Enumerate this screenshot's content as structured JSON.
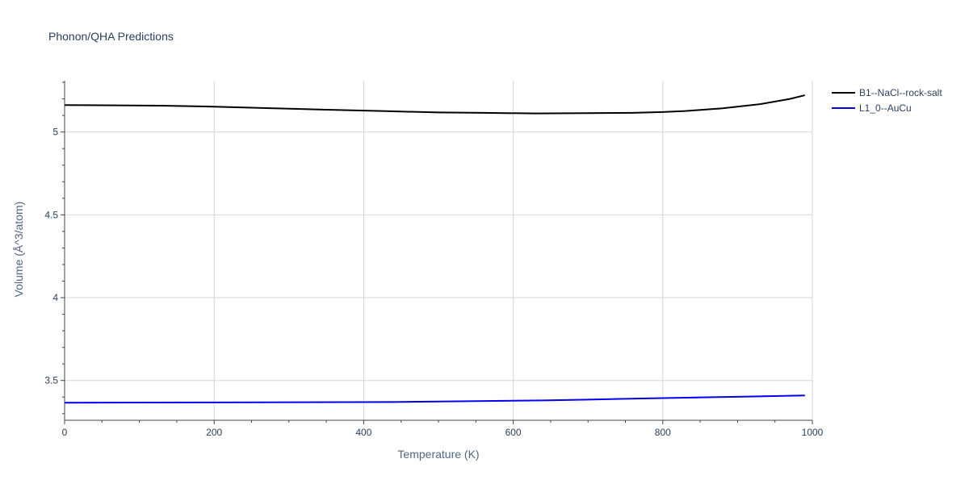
{
  "chart_data": {
    "type": "line",
    "title": "Phonon/QHA Predictions",
    "xlabel": "Temperature (K)",
    "ylabel": "Volume (Å^3/atom)",
    "xlim": [
      0,
      1000
    ],
    "ylim": [
      3.26,
      5.31
    ],
    "xticks": [
      0,
      200,
      400,
      600,
      800,
      1000
    ],
    "yticks": [
      3.5,
      4,
      4.5,
      5
    ],
    "xtick_labels": [
      "0",
      "200",
      "400",
      "600",
      "800",
      "1000"
    ],
    "ytick_labels": [
      "3.5",
      "4",
      "4.5",
      "5"
    ],
    "grid": true,
    "legend_position": "top-right",
    "series": [
      {
        "name": "B1--NaCl--rock-salt",
        "color": "#000000",
        "x": [
          0,
          130,
          200,
          280,
          350,
          430,
          500,
          560,
          630,
          700,
          760,
          800,
          830,
          880,
          930,
          970,
          990
        ],
        "y": [
          5.163,
          5.159,
          5.153,
          5.143,
          5.135,
          5.126,
          5.118,
          5.116,
          5.112,
          5.114,
          5.116,
          5.121,
          5.127,
          5.143,
          5.168,
          5.2,
          5.222
        ]
      },
      {
        "name": "L1_0--AuCu",
        "color": "#0000ee",
        "x": [
          0,
          200,
          440,
          500,
          640,
          700,
          800,
          900,
          990
        ],
        "y": [
          3.366,
          3.368,
          3.37,
          3.373,
          3.38,
          3.385,
          3.394,
          3.402,
          3.41
        ]
      }
    ]
  }
}
